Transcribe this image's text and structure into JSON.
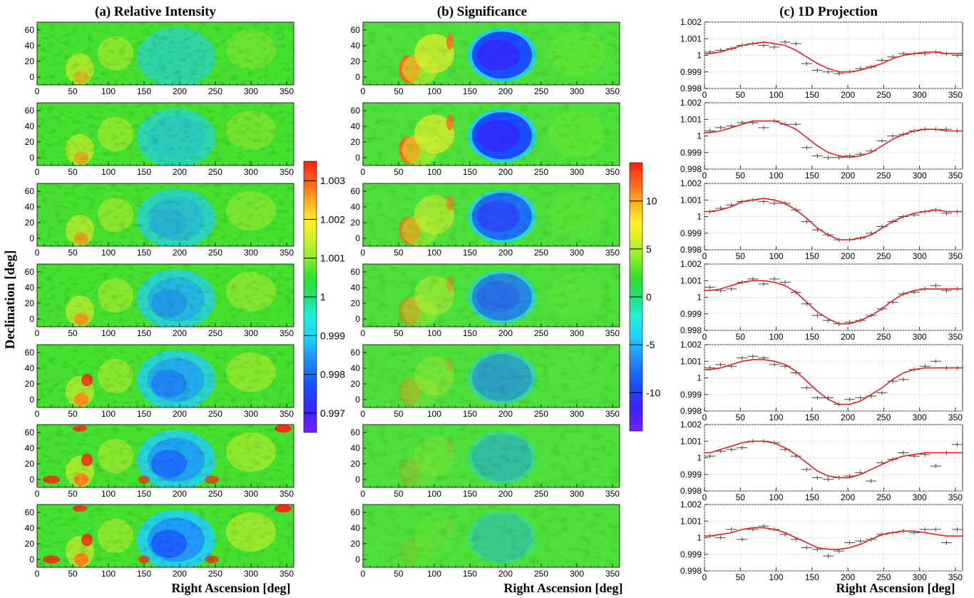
{
  "panel_titles": {
    "a": "(a) Relative Intensity",
    "b": "(b) Significance",
    "c": "(c) 1D Projection"
  },
  "axis_titles": {
    "x": "Right Ascension [deg]",
    "y": "Declination [deg]"
  },
  "colorbar_a": {
    "range": [
      0.9965,
      1.0035
    ],
    "labels": [
      "1.003",
      "1.002",
      "1.001",
      "1",
      "0.999",
      "0.998",
      "0.997"
    ],
    "label_values": [
      1.003,
      1.002,
      1.001,
      1.0,
      0.999,
      0.998,
      0.997
    ]
  },
  "colorbar_b": {
    "range": [
      -14,
      14
    ],
    "labels": [
      "10",
      "5",
      "0",
      "-5",
      "-10"
    ],
    "label_values": [
      10,
      5,
      0,
      -5,
      -10
    ]
  },
  "colors": {
    "fit_line": "#e02020",
    "data_points": "#444444",
    "palette": [
      "#7a1fff",
      "#3b22ff",
      "#1a4dff",
      "#1f8fff",
      "#1fd0ff",
      "#23f0d8",
      "#22e07a",
      "#2fe02f",
      "#8ff02a",
      "#d7f02a",
      "#fff02a",
      "#ffb020",
      "#ff6a1a",
      "#ff2010"
    ]
  },
  "chart_data": [
    {
      "type": "heatmap",
      "panel": "a",
      "title": "(a) Relative Intensity",
      "xlabel": "Right Ascension [deg]",
      "ylabel": "Declination [deg]",
      "xlim": [
        0,
        360
      ],
      "ylim": [
        -10,
        70
      ],
      "xticks": [
        "0",
        "50",
        "100",
        "150",
        "200",
        "250",
        "300",
        "350"
      ],
      "yticks": [
        "0",
        "20",
        "40",
        "60"
      ],
      "rows": 7
    },
    {
      "type": "heatmap",
      "panel": "b",
      "title": "(b) Significance",
      "xlabel": "Right Ascension [deg]",
      "xlim": [
        0,
        360
      ],
      "ylim": [
        -10,
        70
      ],
      "xticks": [
        "0",
        "50",
        "100",
        "150",
        "200",
        "250",
        "300",
        "350"
      ],
      "yticks": [
        "0",
        "20",
        "40",
        "60"
      ],
      "rows": 7
    },
    {
      "type": "line",
      "panel": "c",
      "title": "(c) 1D Projection",
      "xlabel": "Right Ascension [deg]",
      "xlim": [
        0,
        360
      ],
      "ylim": [
        0.998,
        1.002
      ],
      "xticks": [
        "0",
        "50",
        "100",
        "150",
        "200",
        "250",
        "300",
        "350"
      ],
      "yticks": [
        "0.998",
        "0.999",
        "1",
        "1.001",
        "1.002"
      ],
      "x": [
        7.5,
        22.5,
        37.5,
        52.5,
        67.5,
        82.5,
        97.5,
        112.5,
        127.5,
        142.5,
        157.5,
        172.5,
        187.5,
        202.5,
        217.5,
        232.5,
        247.5,
        262.5,
        277.5,
        292.5,
        307.5,
        322.5,
        337.5,
        352.5
      ],
      "series": [
        {
          "values": [
            1.0002,
            1.0003,
            1.0004,
            1.0006,
            1.0007,
            1.0006,
            1.0005,
            1.0008,
            1.0007,
            0.9995,
            0.9991,
            0.999,
            0.9989,
            0.999,
            0.9992,
            0.9993,
            0.9997,
            0.9999,
            1.0001,
            1.0001,
            1.0001,
            1.0002,
            1.0001,
            1.0
          ],
          "fit": [
            1.0001,
            1.0002,
            1.0004,
            1.0006,
            1.0007,
            1.0008,
            1.0007,
            1.0006,
            1.0003,
            0.9999,
            0.9995,
            0.9992,
            0.999,
            0.999,
            0.9991,
            0.9993,
            0.9995,
            0.9998,
            1.0,
            1.0001,
            1.0002,
            1.0002,
            1.0001,
            1.0001
          ]
        },
        {
          "values": [
            1.0003,
            1.0005,
            1.0006,
            1.0008,
            1.0008,
            1.0005,
            1.0009,
            1.0007,
            1.0007,
            0.9993,
            0.9988,
            0.9987,
            0.9987,
            0.9988,
            0.9989,
            0.9991,
            0.9997,
            1.0,
            1.0001,
            1.0003,
            1.0004,
            1.0004,
            1.0004,
            1.0003
          ],
          "fit": [
            1.0002,
            1.0003,
            1.0005,
            1.0007,
            1.0009,
            1.0009,
            1.0009,
            1.0007,
            1.0004,
            0.9999,
            0.9994,
            0.999,
            0.9988,
            0.9987,
            0.9988,
            0.999,
            0.9994,
            0.9998,
            1.0001,
            1.0003,
            1.0004,
            1.0004,
            1.0003,
            1.0003
          ]
        },
        {
          "values": [
            1.0003,
            1.0005,
            1.0007,
            1.0009,
            1.001,
            1.0009,
            1.0008,
            1.0008,
            1.0004,
            0.9997,
            0.9992,
            0.9989,
            0.9986,
            0.9986,
            0.9987,
            0.999,
            0.9994,
            0.9997,
            1.0,
            1.0001,
            1.0003,
            1.0004,
            1.0002,
            1.0003
          ],
          "fit": [
            1.0003,
            1.0004,
            1.0006,
            1.0009,
            1.001,
            1.0011,
            1.001,
            1.0008,
            1.0004,
            0.9999,
            0.9993,
            0.9989,
            0.9986,
            0.9986,
            0.9987,
            0.9989,
            0.9993,
            0.9997,
            1.0,
            1.0002,
            1.0003,
            1.0004,
            1.0003,
            1.0003
          ]
        },
        {
          "values": [
            1.0006,
            1.0004,
            1.0005,
            1.0009,
            1.0011,
            1.0008,
            1.0011,
            1.0009,
            1.0003,
            0.9996,
            0.9989,
            0.9986,
            0.9984,
            0.9985,
            0.9986,
            0.9989,
            0.9993,
            0.9997,
            1.0002,
            1.0003,
            1.0005,
            1.0007,
            1.0004,
            1.0005
          ],
          "fit": [
            1.0004,
            1.0005,
            1.0007,
            1.0009,
            1.001,
            1.001,
            1.0009,
            1.0007,
            1.0003,
            0.9997,
            0.9991,
            0.9987,
            0.9984,
            0.9984,
            0.9986,
            0.9989,
            0.9993,
            0.9998,
            1.0002,
            1.0004,
            1.0005,
            1.0005,
            1.0005,
            1.0005
          ]
        },
        {
          "values": [
            1.0006,
            1.0008,
            1.0007,
            1.0012,
            1.0013,
            1.0012,
            1.0008,
            1.0007,
            1.0003,
            0.9994,
            0.9988,
            0.9988,
            0.9984,
            0.9987,
            0.9988,
            0.9989,
            0.9991,
            0.9998,
            0.9999,
            1.0005,
            1.0007,
            1.001,
            1.0006,
            1.0006
          ],
          "fit": [
            1.0005,
            1.0006,
            1.0008,
            1.001,
            1.0011,
            1.0011,
            1.001,
            1.0008,
            1.0004,
            0.9998,
            0.9992,
            0.9987,
            0.9984,
            0.9984,
            0.9986,
            0.999,
            0.9994,
            0.9999,
            1.0003,
            1.0005,
            1.0006,
            1.0006,
            1.0006,
            1.0006
          ]
        },
        {
          "values": [
            1.0001,
            1.0004,
            1.0005,
            1.0006,
            1.001,
            1.001,
            1.0009,
            1.0005,
            1.0001,
            0.9993,
            0.9988,
            0.9987,
            0.9988,
            0.9989,
            0.9991,
            0.9986,
            0.9997,
            0.9999,
            1.0003,
            1.0001,
            1.0002,
            0.9995,
            1.0003,
            1.0008
          ],
          "fit": [
            1.0003,
            1.0005,
            1.0007,
            1.0009,
            1.001,
            1.001,
            1.0009,
            1.0006,
            1.0002,
            0.9997,
            0.9992,
            0.9989,
            0.9988,
            0.9988,
            0.999,
            0.9993,
            0.9996,
            0.9999,
            1.0001,
            1.0002,
            1.0003,
            1.0003,
            1.0003,
            1.0003
          ]
        },
        {
          "values": [
            1.0001,
            1.0,
            1.0005,
            0.9999,
            1.0005,
            1.0007,
            1.0005,
            1.0002,
            0.9999,
            0.9994,
            0.9993,
            0.9989,
            0.9992,
            0.9997,
            0.9998,
            0.9999,
            1.0002,
            1.0003,
            1.0004,
            1.0003,
            1.0005,
            1.0005,
            0.9997,
            1.0005
          ],
          "fit": [
            1.0001,
            1.0002,
            1.0003,
            1.0005,
            1.0006,
            1.0006,
            1.0005,
            1.0003,
            1.0,
            0.9997,
            0.9994,
            0.9993,
            0.9993,
            0.9994,
            0.9996,
            0.9999,
            1.0002,
            1.0003,
            1.0004,
            1.0004,
            1.0003,
            1.0002,
            1.0001,
            1.0001
          ]
        }
      ]
    }
  ]
}
